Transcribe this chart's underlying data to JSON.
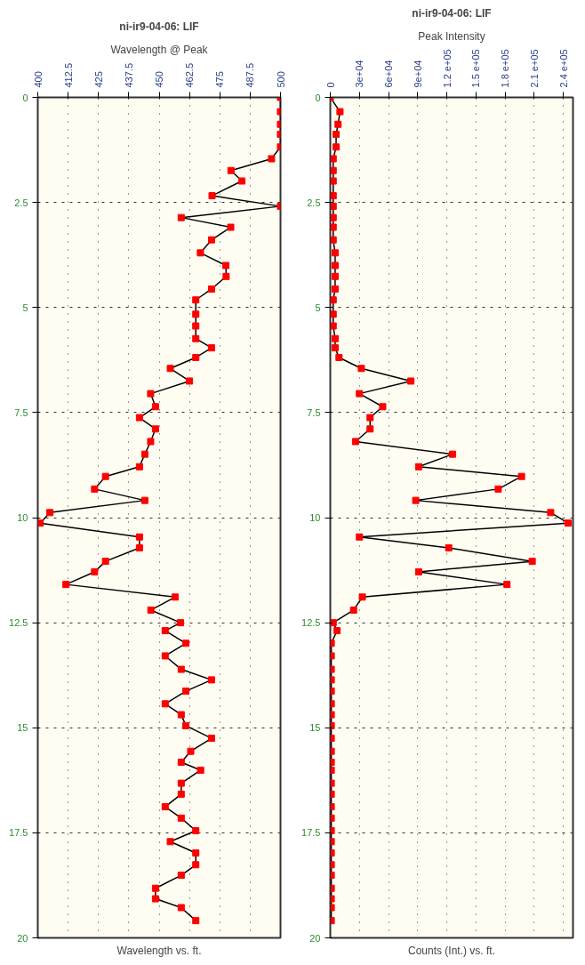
{
  "chart_data": [
    {
      "type": "line",
      "orientation": "horizontal",
      "title": "ni-ir9-04-06: LIF",
      "subtitle": "Wavelength @ Peak",
      "xlabel": "Wavelength vs. ft.",
      "marker": "square",
      "grid": true,
      "xlim": [
        400,
        500
      ],
      "xticks": [
        400,
        {
          "value": 412.5,
          "label": "412.5"
        },
        425,
        {
          "value": 437.5,
          "label": "437.5"
        },
        450,
        {
          "value": 462.5,
          "label": "462.5"
        },
        475,
        {
          "value": 487.5,
          "label": "487.5"
        },
        500
      ],
      "ylim": [
        20,
        0
      ],
      "yticks": [
        0,
        2.5,
        5,
        7.5,
        10,
        12.5,
        15,
        17.5,
        20
      ],
      "x": [
        0,
        0.34,
        0.64,
        0.88,
        1.18,
        1.46,
        1.74,
        1.99,
        2.34,
        2.59,
        2.86,
        3.09,
        3.39,
        3.7,
        4.0,
        4.26,
        4.56,
        4.82,
        5.16,
        5.44,
        5.74,
        5.96,
        6.19,
        6.45,
        6.75,
        7.05,
        7.36,
        7.62,
        7.89,
        8.19,
        8.49,
        8.79,
        9.02,
        9.32,
        9.59,
        9.88,
        10.13,
        10.46,
        10.72,
        11.04,
        11.29,
        11.59,
        11.89,
        12.2,
        12.5,
        12.69,
        12.99,
        13.29,
        13.61,
        13.86,
        14.13,
        14.43,
        14.69,
        14.95,
        15.25,
        15.56,
        15.82,
        16.01,
        16.32,
        16.58,
        16.88,
        17.15,
        17.45,
        17.71,
        17.98,
        18.26,
        18.51,
        18.82,
        19.07,
        19.28,
        19.59
      ],
      "series": [
        {
          "color": "#ff0000",
          "values": [
            500,
            500,
            500,
            500,
            500,
            496.3,
            479.6,
            484.1,
            471.8,
            500,
            459.1,
            479.5,
            471.6,
            467,
            477.5,
            477.6,
            471.6,
            465.1,
            465.1,
            465.1,
            465.1,
            471.6,
            465.1,
            454.6,
            462.5,
            446.5,
            448.5,
            441.9,
            448.5,
            446.5,
            444.1,
            441.9,
            427.9,
            423.4,
            444.1,
            405,
            401,
            441.9,
            441.9,
            427.9,
            423.4,
            411.6,
            456.6,
            446.6,
            458.8,
            452.5,
            461,
            452.5,
            459.1,
            471.6,
            461,
            452.5,
            459.1,
            461,
            471.6,
            463,
            459.1,
            467.1,
            459.1,
            459.1,
            452.5,
            459.1,
            465.1,
            454.6,
            465.1,
            465.1,
            459.1,
            448.5,
            448.5,
            459.1,
            465.1
          ]
        }
      ]
    },
    {
      "type": "line",
      "orientation": "horizontal",
      "title": "ni-ir9-04-06: LIF",
      "subtitle": "Peak Intensity",
      "xlabel": "Counts (Int.) vs. ft.",
      "marker": "square",
      "grid": true,
      "xlim": [
        0,
        250000
      ],
      "xticks": [
        {
          "value": 0,
          "label": "0"
        },
        {
          "value": 30000,
          "label": "3e+04"
        },
        {
          "value": 60000,
          "label": "6e+04"
        },
        {
          "value": 90000,
          "label": "9e+04"
        },
        {
          "value": 120000,
          "label": "1.2 e+05"
        },
        {
          "value": 150000,
          "label": "1.5 e+05"
        },
        {
          "value": 180000,
          "label": "1.8 e+05"
        },
        {
          "value": 210000,
          "label": "2.1 e+05"
        },
        {
          "value": 240000,
          "label": "2.4 e+05"
        }
      ],
      "ylim": [
        20,
        0
      ],
      "yticks": [
        0,
        2.5,
        5,
        7.5,
        10,
        12.5,
        15,
        17.5,
        20
      ],
      "x": [
        0,
        0.34,
        0.64,
        0.88,
        1.18,
        1.46,
        1.74,
        1.99,
        2.34,
        2.59,
        2.86,
        3.09,
        3.39,
        3.7,
        4.0,
        4.26,
        4.56,
        4.82,
        5.16,
        5.44,
        5.74,
        5.96,
        6.19,
        6.45,
        6.75,
        7.05,
        7.36,
        7.62,
        7.89,
        8.19,
        8.49,
        8.79,
        9.02,
        9.32,
        9.59,
        9.88,
        10.13,
        10.46,
        10.72,
        11.04,
        11.29,
        11.59,
        11.89,
        12.2,
        12.5,
        12.69,
        12.99,
        13.29,
        13.61,
        13.86,
        14.13,
        14.43,
        14.69,
        14.95,
        15.25,
        15.56,
        15.82,
        16.01,
        16.32,
        16.58,
        16.88,
        17.15,
        17.45,
        17.71,
        17.98,
        18.26,
        18.51,
        18.82,
        19.07,
        19.28,
        19.59
      ],
      "series": [
        {
          "color": "#ff0000",
          "values": [
            0,
            10000,
            8000,
            6000,
            6000,
            3000,
            3000,
            3000,
            3000,
            3000,
            3000,
            3000,
            3000,
            5000,
            5000,
            5000,
            5000,
            3000,
            3000,
            3000,
            5000,
            5000,
            9000,
            32000,
            83000,
            30000,
            54000,
            41000,
            41000,
            26000,
            126000,
            91000,
            197000,
            173000,
            88000,
            227000,
            245000,
            30000,
            122000,
            208000,
            91000,
            182000,
            33000,
            24000,
            3000,
            7000,
            1000,
            1000,
            1000,
            1000,
            1000,
            1000,
            1000,
            1000,
            1000,
            1000,
            1000,
            1000,
            1000,
            1000,
            1000,
            1000,
            1000,
            1000,
            1000,
            1000,
            1000,
            1000,
            1000,
            1000,
            1000
          ]
        }
      ]
    }
  ]
}
